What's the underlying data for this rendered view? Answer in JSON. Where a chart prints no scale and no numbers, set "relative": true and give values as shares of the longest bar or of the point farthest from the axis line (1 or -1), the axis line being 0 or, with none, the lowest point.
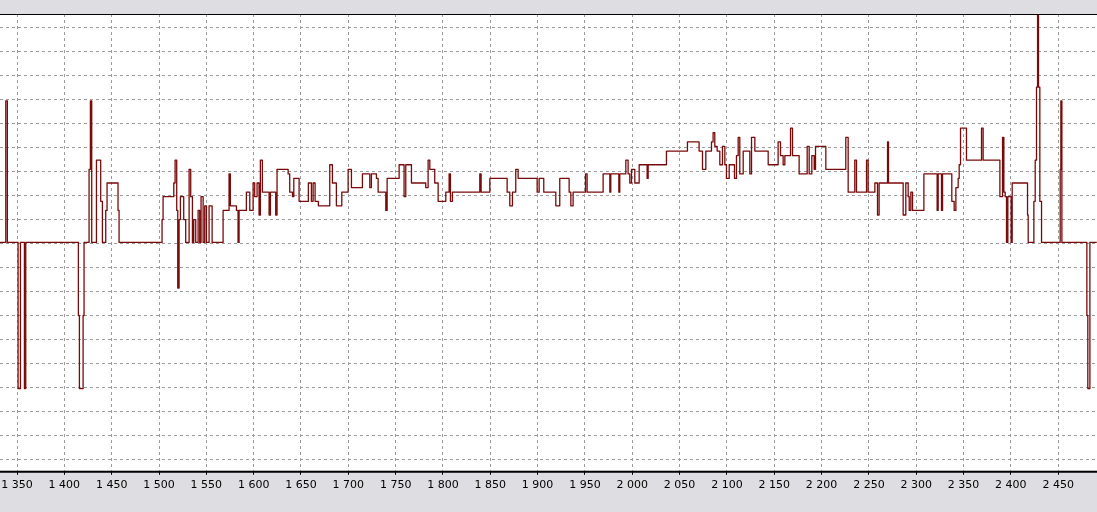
{
  "chart_data": {
    "type": "step",
    "relative": true,
    "grid": true,
    "color": "#7a0a0a",
    "xlim": [
      1332,
      2491
    ],
    "xticks": [
      {
        "value": 1350,
        "label": "1 350"
      },
      {
        "value": 1400,
        "label": "1 400"
      },
      {
        "value": 1450,
        "label": "1 450"
      },
      {
        "value": 1500,
        "label": "1 500"
      },
      {
        "value": 1550,
        "label": "1 550"
      },
      {
        "value": 1600,
        "label": "1 600"
      },
      {
        "value": 1650,
        "label": "1 650"
      },
      {
        "value": 1700,
        "label": "1 700"
      },
      {
        "value": 1750,
        "label": "1 750"
      },
      {
        "value": 1800,
        "label": "1 800"
      },
      {
        "value": 1850,
        "label": "1 850"
      },
      {
        "value": 1900,
        "label": "1 900"
      },
      {
        "value": 1950,
        "label": "1 950"
      },
      {
        "value": 2000,
        "label": "2 000"
      },
      {
        "value": 2050,
        "label": "2 050"
      },
      {
        "value": 2100,
        "label": "2 100"
      },
      {
        "value": 2150,
        "label": "2 150"
      },
      {
        "value": 2200,
        "label": "2 200"
      },
      {
        "value": 2250,
        "label": "2 250"
      },
      {
        "value": 2300,
        "label": "2 300"
      },
      {
        "value": 2350,
        "label": "2 350"
      },
      {
        "value": 2400,
        "label": "2 400"
      },
      {
        "value": 2450,
        "label": "2 450"
      }
    ],
    "x": [
      1332,
      1338.1,
      1339.8,
      1351.1,
      1353.6,
      1357.8,
      1359.2,
      1414.8,
      1415.9,
      1419.8,
      1420.8,
      1426.1,
      1427.5,
      1428.9,
      1433.9,
      1438.4,
      1440.2,
      1443.7,
      1445.1,
      1456.7,
      1457.8,
      1503.2,
      1504.3,
      1515.6,
      1517,
      1518.7,
      1519.8,
      1521.2,
      1522.6,
      1526.1,
      1528.2,
      1531.8,
      1533.5,
      1535.3,
      1536.7,
      1538.8,
      1541.3,
      1543,
      1544.4,
      1546.6,
      1548.3,
      1550.1,
      1552.9,
      1556.1,
      1567.7,
      1574,
      1575.4,
      1581.8,
      1583.5,
      1584.6,
      1592.3,
      1595.9,
      1599.4,
      1601.1,
      1603.6,
      1605.7,
      1607.1,
      1609.2,
      1616.3,
      1617.7,
      1623.3,
      1624.7,
      1636.4,
      1638.1,
      1641,
      1642.4,
      1648,
      1657.8,
      1661,
      1662.8,
      1664.9,
      1668.4,
      1680.4,
      1683.2,
      1687.4,
      1693.1,
      1699.8,
      1703.3,
      1714.9,
      1722.7,
      1724.4,
      1729.7,
      1731.5,
      1739.6,
      1741,
      1753.7,
      1758.9,
      1760.7,
      1766.7,
      1781.8,
      1784.3,
      1786.1,
      1791.3,
      1794.9,
      1803,
      1806.5,
      1807.9,
      1810,
      1838.9,
      1840.3,
      1849.5,
      1867.8,
      1870.6,
      1873.4,
      1876.9,
      1879.4,
      1899.5,
      1901.6,
      1906.5,
      1919.2,
      1923.4,
      1933.3,
      1935.1,
      1937.5,
      1950.6,
      1952.3,
      1969.2,
      1976.3,
      1977.3,
      1985.8,
      1986.8,
      1993.2,
      1995.6,
      1997.4,
      1999.2,
      2002.7,
      2007.3,
      2015.7,
      2016.8,
      2036.1,
      2058.3,
      2070.6,
      2074.2,
      2077.7,
      2083.7,
      2085.4,
      2087.2,
      2089.7,
      2092.5,
      2095.3,
      2097.8,
      2099.5,
      2102.4,
      2108,
      2110.1,
      2111.9,
      2113.6,
      2117.2,
      2124.2,
      2126,
      2129.5,
      2143.6,
      2154.1,
      2156.6,
      2159.4,
      2161.2,
      2167.2,
      2169.3,
      2176.3,
      2184.8,
      2186.9,
      2189.7,
      2192.2,
      2193.6,
      2204.5,
      2225.6,
      2228.1,
      2235.1,
      2236.9,
      2247.5,
      2249.2,
      2256.3,
      2259.1,
      2260.8,
      2269.7,
      2270.7,
      2286.2,
      2289,
      2291.5,
      2292.6,
      2294.3,
      2296.1,
      2308.1,
      2322.1,
      2323.2,
      2326.7,
      2327.8,
      2337.6,
      2340.1,
      2341.9,
      2344.3,
      2345.4,
      2346.8,
      2353.1,
      2369,
      2370.7,
      2388.4,
      2391.2,
      2392.6,
      2394,
      2395.4,
      2396.8,
      2400.3,
      2401.4,
      2417.6,
      2418.3,
      2424.3,
      2425.7,
      2427.1,
      2428.2,
      2429.2,
      2430.6,
      2432.4,
      2452.1,
      2452.8,
      2453.9,
      2480.3,
      2481.3,
      2483.5,
      2490.8
    ],
    "values": [
      0.5,
      0.81,
      0.5,
      0.18,
      0.5,
      0.18,
      0.5,
      0.34,
      0.18,
      0.34,
      0.5,
      0.66,
      0.81,
      0.5,
      0.68,
      0.59,
      0.5,
      0.57,
      0.63,
      0.57,
      0.5,
      0.55,
      0.6,
      0.63,
      0.68,
      0.57,
      0.4,
      0.55,
      0.6,
      0.55,
      0.5,
      0.66,
      0.6,
      0.5,
      0.55,
      0.5,
      0.57,
      0.5,
      0.6,
      0.5,
      0.58,
      0.5,
      0.58,
      0.5,
      0.57,
      0.65,
      0.58,
      0.57,
      0.5,
      0.57,
      0.61,
      0.57,
      0.63,
      0.6,
      0.63,
      0.56,
      0.68,
      0.61,
      0.56,
      0.61,
      0.56,
      0.66,
      0.65,
      0.61,
      0.6,
      0.64,
      0.59,
      0.63,
      0.59,
      0.63,
      0.59,
      0.58,
      0.67,
      0.63,
      0.58,
      0.61,
      0.66,
      0.62,
      0.65,
      0.62,
      0.65,
      0.64,
      0.61,
      0.57,
      0.64,
      0.67,
      0.6,
      0.67,
      0.63,
      0.62,
      0.68,
      0.66,
      0.63,
      0.59,
      0.61,
      0.65,
      0.59,
      0.61,
      0.65,
      0.61,
      0.64,
      0.61,
      0.58,
      0.61,
      0.66,
      0.64,
      0.61,
      0.64,
      0.61,
      0.58,
      0.64,
      0.61,
      0.58,
      0.61,
      0.65,
      0.61,
      0.65,
      0.61,
      0.65,
      0.61,
      0.65,
      0.68,
      0.65,
      0.63,
      0.66,
      0.63,
      0.67,
      0.64,
      0.67,
      0.7,
      0.72,
      0.7,
      0.66,
      0.7,
      0.72,
      0.74,
      0.71,
      0.7,
      0.67,
      0.71,
      0.67,
      0.64,
      0.67,
      0.64,
      0.69,
      0.73,
      0.65,
      0.7,
      0.65,
      0.73,
      0.7,
      0.67,
      0.72,
      0.69,
      0.67,
      0.69,
      0.75,
      0.69,
      0.65,
      0.71,
      0.65,
      0.69,
      0.66,
      0.71,
      0.66,
      0.73,
      0.61,
      0.68,
      0.61,
      0.68,
      0.61,
      0.63,
      0.56,
      0.63,
      0.72,
      0.63,
      0.56,
      0.63,
      0.6,
      0.57,
      0.61,
      0.57,
      0.65,
      0.57,
      0.65,
      0.57,
      0.65,
      0.59,
      0.57,
      0.62,
      0.64,
      0.67,
      0.75,
      0.68,
      0.75,
      0.68,
      0.6,
      0.73,
      0.61,
      0.6,
      0.5,
      0.6,
      0.5,
      0.63,
      0.56,
      0.5,
      0.59,
      0.68,
      0.84,
      1.0,
      0.84,
      0.59,
      0.5,
      0.66,
      0.81,
      0.5,
      0.34,
      0.18,
      0.5,
      0.5
    ]
  }
}
